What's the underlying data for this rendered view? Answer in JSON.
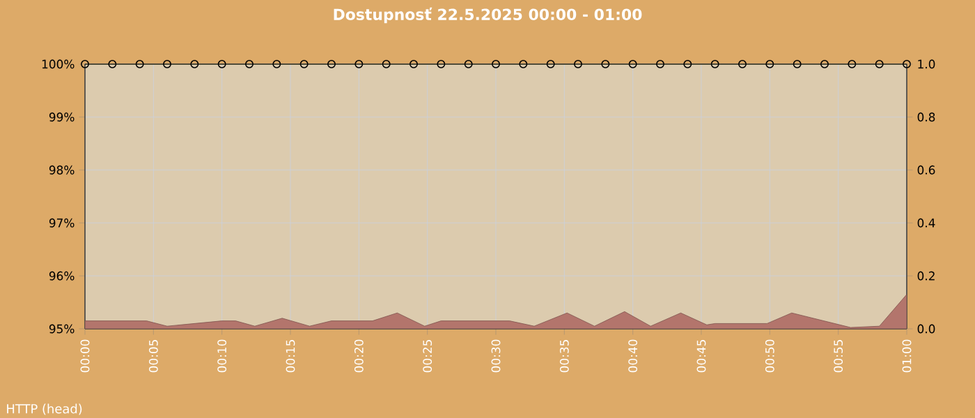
{
  "chart_data": {
    "type": "line",
    "title": "Dostupnosť 22.5.2025 00:00 - 01:00",
    "annotations": [
      "HTTP (head)"
    ],
    "xlim": [
      0,
      60
    ],
    "xticks": [
      {
        "value": 0,
        "label": "00:00"
      },
      {
        "value": 5,
        "label": "00:05"
      },
      {
        "value": 10,
        "label": "00:10"
      },
      {
        "value": 15,
        "label": "00:15"
      },
      {
        "value": 20,
        "label": "00:20"
      },
      {
        "value": 25,
        "label": "00:25"
      },
      {
        "value": 30,
        "label": "00:30"
      },
      {
        "value": 35,
        "label": "00:35"
      },
      {
        "value": 40,
        "label": "00:40"
      },
      {
        "value": 45,
        "label": "00:45"
      },
      {
        "value": 50,
        "label": "00:50"
      },
      {
        "value": 55,
        "label": "00:55"
      },
      {
        "value": 60,
        "label": "01:00"
      }
    ],
    "ylim": [
      95,
      100
    ],
    "yticks": [
      {
        "value": 95,
        "label": "95%"
      },
      {
        "value": 96,
        "label": "96%"
      },
      {
        "value": 97,
        "label": "97%"
      },
      {
        "value": 98,
        "label": "98%"
      },
      {
        "value": 99,
        "label": "99%"
      },
      {
        "value": 100,
        "label": "100%"
      }
    ],
    "y2lim": [
      0,
      1
    ],
    "y2ticks": [
      {
        "value": 0,
        "label": "0.0"
      },
      {
        "value": 0.2,
        "label": "0.2"
      },
      {
        "value": 0.4,
        "label": "0.4"
      },
      {
        "value": 0.6,
        "label": "0.6"
      },
      {
        "value": 0.8,
        "label": "0.8"
      },
      {
        "value": 1,
        "label": "1.0"
      }
    ],
    "grid": true,
    "series": [
      {
        "type": "area",
        "axis": "y2",
        "color": "#b3756c",
        "x": [
          0,
          4.5,
          6,
          8,
          10,
          11,
          12.4,
          14.4,
          16.4,
          18,
          21,
          22.8,
          24.8,
          26,
          31,
          32.8,
          35.2,
          37.2,
          39.4,
          41.3,
          43.5,
          45.4,
          46,
          49.8,
          51.6,
          55.9,
          58,
          60
        ],
        "values": [
          0.03,
          0.03,
          0.01,
          0.02,
          0.03,
          0.03,
          0.01,
          0.04,
          0.01,
          0.03,
          0.03,
          0.06,
          0.01,
          0.03,
          0.03,
          0.01,
          0.06,
          0.01,
          0.065,
          0.01,
          0.06,
          0.015,
          0.02,
          0.02,
          0.06,
          0.005,
          0.01,
          0.13
        ]
      },
      {
        "type": "line",
        "marker": "circle",
        "color": "#5c5c28",
        "x": [
          0,
          2,
          4,
          6,
          8,
          10,
          12,
          14,
          16,
          18,
          20,
          22,
          24,
          26,
          28,
          30,
          32,
          34,
          36,
          38,
          40,
          42,
          44,
          46,
          48,
          50,
          52,
          54,
          56,
          58,
          60
        ],
        "values": [
          100,
          100,
          100,
          100,
          100,
          100,
          100,
          100,
          100,
          100,
          100,
          100,
          100,
          100,
          100,
          100,
          100,
          100,
          100,
          100,
          100,
          100,
          100,
          100,
          100,
          100,
          100,
          100,
          100,
          100,
          100
        ]
      }
    ]
  }
}
